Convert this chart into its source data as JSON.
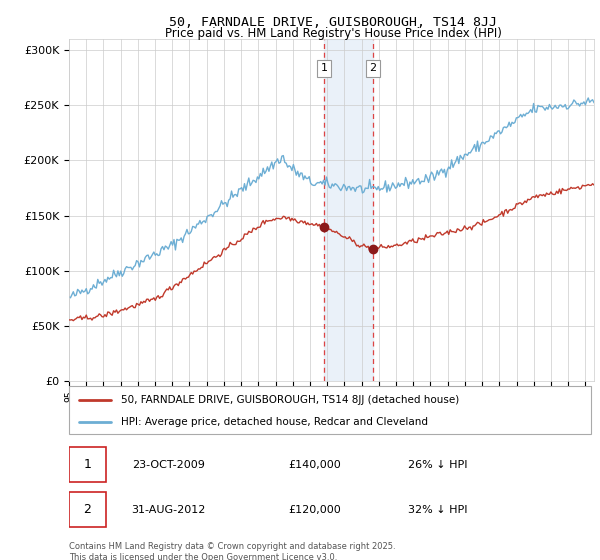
{
  "title": "50, FARNDALE DRIVE, GUISBOROUGH, TS14 8JJ",
  "subtitle": "Price paid vs. HM Land Registry's House Price Index (HPI)",
  "ylabel_ticks": [
    "£0",
    "£50K",
    "£100K",
    "£150K",
    "£200K",
    "£250K",
    "£300K"
  ],
  "ytick_values": [
    0,
    50000,
    100000,
    150000,
    200000,
    250000,
    300000
  ],
  "ylim": [
    0,
    310000
  ],
  "xlim_start": 1995.0,
  "xlim_end": 2025.5,
  "hpi_color": "#6daed4",
  "price_color": "#c0392b",
  "sale_dot_color": "#8b1a1a",
  "shade_color": "#dce9f5",
  "shade_alpha": 0.6,
  "vline_color": "#dd4444",
  "marker1_x": 2009.82,
  "marker1_y": 140000,
  "marker2_x": 2012.67,
  "marker2_y": 120000,
  "legend_entry1": "50, FARNDALE DRIVE, GUISBOROUGH, TS14 8JJ (detached house)",
  "legend_entry2": "HPI: Average price, detached house, Redcar and Cleveland",
  "table_row1": [
    "1",
    "23-OCT-2009",
    "£140,000",
    "26% ↓ HPI"
  ],
  "table_row2": [
    "2",
    "31-AUG-2012",
    "£120,000",
    "32% ↓ HPI"
  ],
  "footnote1": "Contains HM Land Registry data © Crown copyright and database right 2025.",
  "footnote2": "This data is licensed under the Open Government Licence v3.0.",
  "background_color": "#ffffff",
  "grid_color": "#cccccc"
}
